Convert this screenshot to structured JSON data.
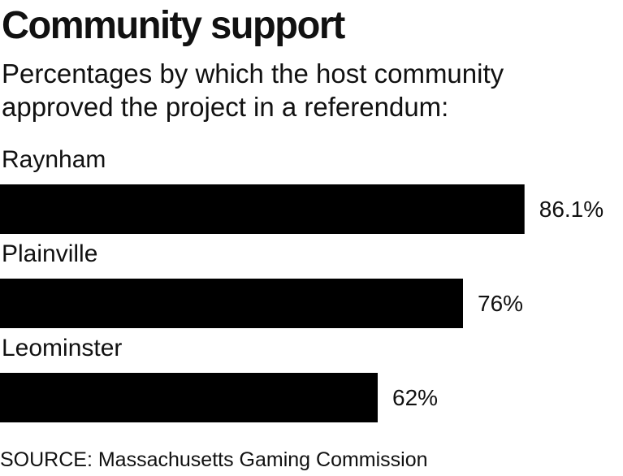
{
  "chart_data": {
    "type": "bar",
    "orientation": "horizontal",
    "title": "Community support",
    "subtitle": "Percentages by which the host community approved the project in a referendum:",
    "categories": [
      "Raynham",
      "Plainville",
      "Leominster"
    ],
    "values": [
      86.1,
      76,
      62
    ],
    "value_labels": [
      "86.1%",
      "76%",
      "62%"
    ],
    "color": "#000000",
    "xlim": [
      0,
      100
    ],
    "source": "SOURCE: Massachusetts Gaming Commission"
  }
}
